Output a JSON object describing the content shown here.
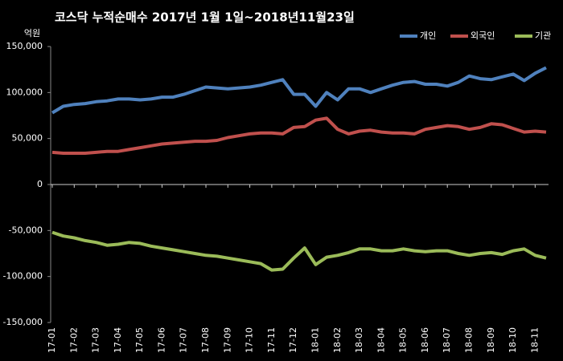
{
  "chart_data": {
    "type": "line",
    "title": "코스닥 누적순매수 2017년 1월 1일~2018년11월23일",
    "y_unit": "억원",
    "categories": [
      "17-01",
      null,
      "17-02",
      null,
      "17-03",
      null,
      "17-04",
      null,
      "17-05",
      null,
      "17-06",
      null,
      "17-07",
      null,
      "17-08",
      null,
      "17-09",
      null,
      "17-10",
      null,
      "17-11",
      null,
      "17-12",
      null,
      "18-01",
      null,
      "18-02",
      null,
      "18-03",
      null,
      "18-04",
      null,
      "18-05",
      null,
      "18-06",
      null,
      "18-07",
      null,
      "18-08",
      null,
      "18-09",
      null,
      "18-10",
      null,
      "18-11",
      null
    ],
    "series": [
      {
        "name": "개인",
        "color": "#4f81bd",
        "values": [
          78000,
          85000,
          87000,
          88000,
          90000,
          91000,
          93000,
          93000,
          92000,
          93000,
          95000,
          95000,
          98000,
          102000,
          106000,
          105000,
          104000,
          105000,
          106000,
          108000,
          111000,
          114000,
          98000,
          98000,
          85000,
          100000,
          92000,
          104000,
          104000,
          100000,
          104000,
          108000,
          111000,
          112000,
          109000,
          109000,
          107000,
          111000,
          118000,
          115000,
          114000,
          117000,
          120000,
          113000,
          121000,
          127000
        ]
      },
      {
        "name": "외국인",
        "color": "#c0504d",
        "values": [
          35000,
          34000,
          34000,
          34000,
          35000,
          36000,
          36000,
          38000,
          40000,
          42000,
          44000,
          45000,
          46000,
          47000,
          47000,
          48000,
          51000,
          53000,
          55000,
          56000,
          56000,
          55000,
          62000,
          63000,
          70000,
          72000,
          60000,
          55000,
          58000,
          59000,
          57000,
          56000,
          56000,
          55000,
          60000,
          62000,
          64000,
          63000,
          60000,
          62000,
          66000,
          65000,
          61000,
          57000,
          58000,
          57000
        ]
      },
      {
        "name": "기관",
        "color": "#9bbb59",
        "values": [
          -52000,
          -56000,
          -58000,
          -61000,
          -63000,
          -66000,
          -65000,
          -63000,
          -64000,
          -67000,
          -69000,
          -71000,
          -73000,
          -75000,
          -77000,
          -78000,
          -80000,
          -82000,
          -84000,
          -86000,
          -93000,
          -92000,
          -80000,
          -69000,
          -87000,
          -79000,
          -77000,
          -74000,
          -70000,
          -70000,
          -72000,
          -72000,
          -70000,
          -72000,
          -73000,
          -72000,
          -72000,
          -75000,
          -77000,
          -75000,
          -74000,
          -76000,
          -72000,
          -70000,
          -77000,
          -80000
        ]
      }
    ],
    "ylim": [
      -150000,
      150000
    ],
    "yticks": [
      {
        "value": -150000,
        "label": "-150,000"
      },
      {
        "value": -100000,
        "label": "-100,000"
      },
      {
        "value": -50000,
        "label": "-50,000"
      },
      0,
      {
        "value": 50000,
        "label": "50,000"
      },
      {
        "value": 100000,
        "label": "100,000"
      },
      {
        "value": 150000,
        "label": "150,000"
      }
    ],
    "grid": false,
    "legend": "top-right"
  }
}
